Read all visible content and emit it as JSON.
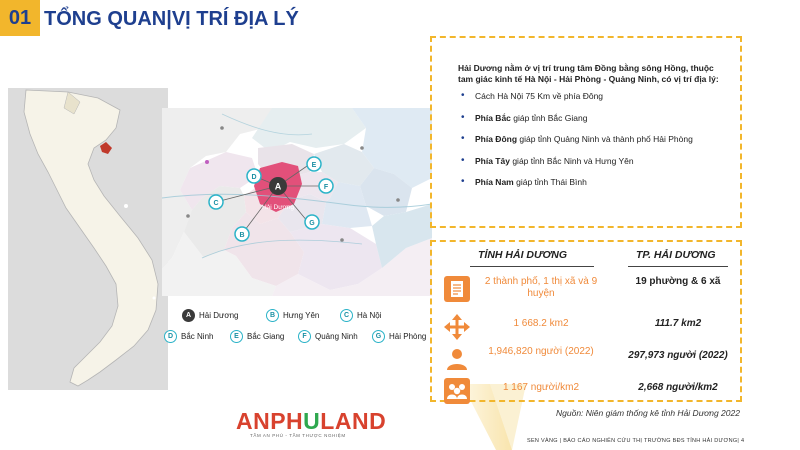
{
  "header": {
    "section_number": "01",
    "title": "TỔNG QUAN|VỊ TRÍ ĐỊA LÝ"
  },
  "map_markers": {
    "A": "A",
    "B": "B",
    "C": "C",
    "D": "D",
    "E": "E",
    "F": "F",
    "G": "G",
    "center_label": "Hải Dương"
  },
  "legend": [
    {
      "key": "A",
      "name": "Hải Dương",
      "style": "dark"
    },
    {
      "key": "B",
      "name": "Hưng Yên",
      "style": "cyan"
    },
    {
      "key": "C",
      "name": "Hà Nội",
      "style": "cyan"
    },
    {
      "key": "D",
      "name": "Bắc Ninh",
      "style": "cyan"
    },
    {
      "key": "E",
      "name": "Bắc Giang",
      "style": "cyan"
    },
    {
      "key": "F",
      "name": "Quảng Ninh",
      "style": "cyan"
    },
    {
      "key": "G",
      "name": "Hải Phòng",
      "style": "cyan"
    }
  ],
  "info": {
    "intro": "Hải Dương nằm ở vị trí trung tâm Đồng bằng sông Hồng, thuộc tam giác kinh tế Hà Nội - Hải Phòng - Quảng Ninh, có vị trí địa lý:",
    "bullets": [
      {
        "bold": "",
        "text": "Cách Hà Nội 75 Km về phía Đông"
      },
      {
        "bold": "Phía Bắc",
        "text": " giáp tỉnh Bắc Giang"
      },
      {
        "bold": "Phía Đông",
        "text": " giáp tỉnh Quảng Ninh và thành phố Hải Phòng"
      },
      {
        "bold": "Phía Tây",
        "text": " giáp tỉnh Bắc Ninh và Hưng Yên"
      },
      {
        "bold": "Phía Nam",
        "text": " giáp tỉnh Thái Bình"
      }
    ]
  },
  "stats": {
    "col1_header": "TỈNH HẢI DƯƠNG",
    "col2_header": "TP. HẢI DƯƠNG",
    "rows": [
      {
        "icon": "document-icon",
        "v1": "2 thành phố, 1 thị xã và 9 huyện",
        "v2": "19 phường & 6 xã"
      },
      {
        "icon": "area-arrows-icon",
        "v1": "1 668.2 km2",
        "v2": "111.7 km2"
      },
      {
        "icon": "person-icon",
        "v1": "1,946,820 người (2022)",
        "v2": "297,973 người (2022)"
      },
      {
        "icon": "people-group-icon",
        "v1": "1 167 người/km2",
        "v2": "2,668 người/km2"
      }
    ]
  },
  "source": "Nguồn: Niên giám thống kê tỉnh Hải Dương 2022",
  "logo": {
    "part1": "ANPH",
    "part2": "U",
    "part3": "LAND",
    "tagline": "TẦM AN PHÚ - TẦM THƯỢC NGHIỆM"
  },
  "footer": "SEN VÀNG | BÁO CÁO NGHIÊN CỨU THỊ TRƯỜNG BĐS TỈNH HẢI DƯƠNG| 4",
  "colors": {
    "accent_yellow": "#f2b62c",
    "title_blue": "#1e3f8f",
    "orange": "#f08a3a",
    "haiduong_pink": "#e54a7a"
  }
}
